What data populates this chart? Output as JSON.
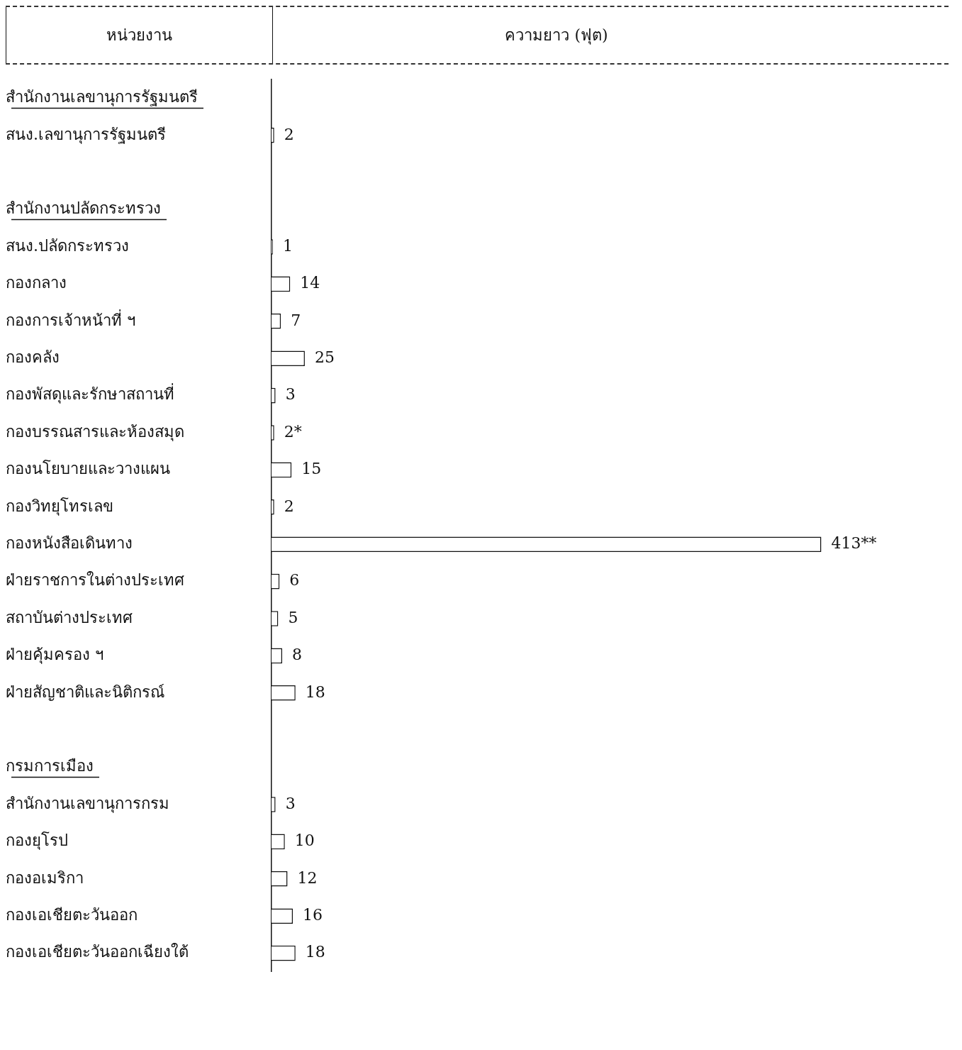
{
  "chart_data": {
    "type": "bar",
    "orientation": "horizontal",
    "ylabel": "หน่วยงาน",
    "xlabel": "ความยาว (ฟุต)",
    "categories": [
      "สำนักงานเลขานุการรัฐมนตรี",
      "สนง.เลขานุการรัฐมนตรี",
      null,
      "สำนักงานปลัดกระทรวง",
      "สนง.ปลัดกระทรวง",
      "กองกลาง",
      "กองการเจ้าหน้าที่ ฯ",
      "กองคลัง",
      "กองพัสดุและรักษาสถานที่",
      "กองบรรณสารและห้องสมุด",
      "กองนโยบายและวางแผน",
      "กองวิทยุโทรเลข",
      "กองหนังสือเดินทาง",
      "ฝ่ายราชการในต่างประเทศ",
      "สถาบันต่างประเทศ",
      "ฝ่ายคุ้มครอง ฯ",
      "ฝ่ายสัญชาติและนิติกรณ์",
      null,
      "กรมการเมือง",
      "สำนักงานเลขานุการกรม",
      "กองยุโรป",
      "กองอเมริกา",
      "กองเอเชียตะวันออก",
      "กองเอเชียตะวันออกเฉียงใต้"
    ],
    "values": [
      null,
      2,
      null,
      null,
      1,
      14,
      7,
      25,
      3,
      2,
      15,
      2,
      413,
      6,
      5,
      8,
      18,
      null,
      null,
      3,
      10,
      12,
      16,
      18
    ],
    "value_labels": [
      null,
      "2",
      null,
      null,
      "1",
      "14",
      "7",
      "25",
      "3",
      "2*",
      "15",
      "2",
      "413**",
      "6",
      "5",
      "8",
      "18",
      null,
      null,
      "3",
      "10",
      "12",
      "16",
      "18"
    ],
    "color": "#ffffff",
    "grid": false,
    "legend": false,
    "tick_labels": "y"
  }
}
